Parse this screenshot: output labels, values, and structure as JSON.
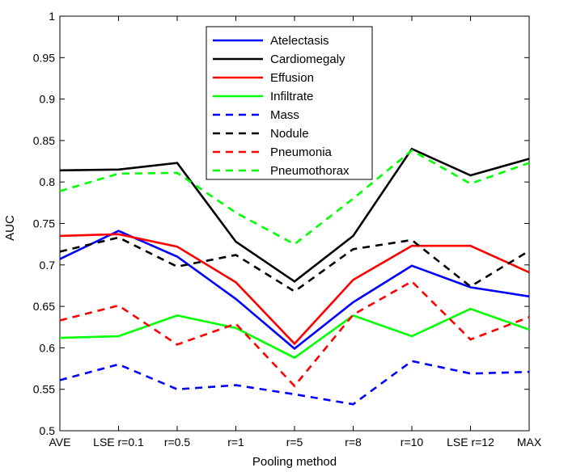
{
  "chart_data": {
    "type": "line",
    "title": "",
    "xlabel": "Pooling method",
    "ylabel": "AUC",
    "categories": [
      "AVE",
      "LSE r=0.1",
      "r=0.5",
      "r=1",
      "r=5",
      "r=8",
      "r=10",
      "LSE r=12",
      "MAX"
    ],
    "ylim": [
      0.5,
      1.0
    ],
    "yticks": [
      "0.5",
      "0.55",
      "0.6",
      "0.65",
      "0.7",
      "0.75",
      "0.8",
      "0.85",
      "0.9",
      "0.95",
      "1"
    ],
    "grid": false,
    "legend_position": "top-center",
    "series": [
      {
        "name": "Atelectasis",
        "color": "#0000ff",
        "dash": false,
        "values": [
          0.707,
          0.741,
          0.71,
          0.659,
          0.599,
          0.655,
          0.699,
          0.673,
          0.662
        ]
      },
      {
        "name": "Cardiomegaly",
        "color": "#000000",
        "dash": false,
        "values": [
          0.814,
          0.815,
          0.823,
          0.728,
          0.68,
          0.735,
          0.84,
          0.808,
          0.828
        ]
      },
      {
        "name": "Effusion",
        "color": "#ff0000",
        "dash": false,
        "values": [
          0.735,
          0.737,
          0.722,
          0.679,
          0.605,
          0.682,
          0.723,
          0.723,
          0.691
        ]
      },
      {
        "name": "Infiltrate",
        "color": "#00ff00",
        "dash": false,
        "values": [
          0.612,
          0.614,
          0.639,
          0.624,
          0.588,
          0.639,
          0.614,
          0.647,
          0.622
        ]
      },
      {
        "name": "Mass",
        "color": "#0000ff",
        "dash": true,
        "values": [
          0.561,
          0.58,
          0.55,
          0.555,
          0.544,
          0.532,
          0.584,
          0.569,
          0.571
        ]
      },
      {
        "name": "Nodule",
        "color": "#000000",
        "dash": true,
        "values": [
          0.716,
          0.733,
          0.698,
          0.712,
          0.668,
          0.719,
          0.73,
          0.674,
          0.717
        ]
      },
      {
        "name": "Pneumonia",
        "color": "#ff0000",
        "dash": true,
        "values": [
          0.633,
          0.651,
          0.604,
          0.629,
          0.554,
          0.64,
          0.68,
          0.61,
          0.637
        ]
      },
      {
        "name": "Pneumothorax",
        "color": "#00ff00",
        "dash": true,
        "values": [
          0.789,
          0.81,
          0.811,
          0.763,
          0.725,
          0.78,
          0.838,
          0.798,
          0.823
        ]
      }
    ]
  }
}
